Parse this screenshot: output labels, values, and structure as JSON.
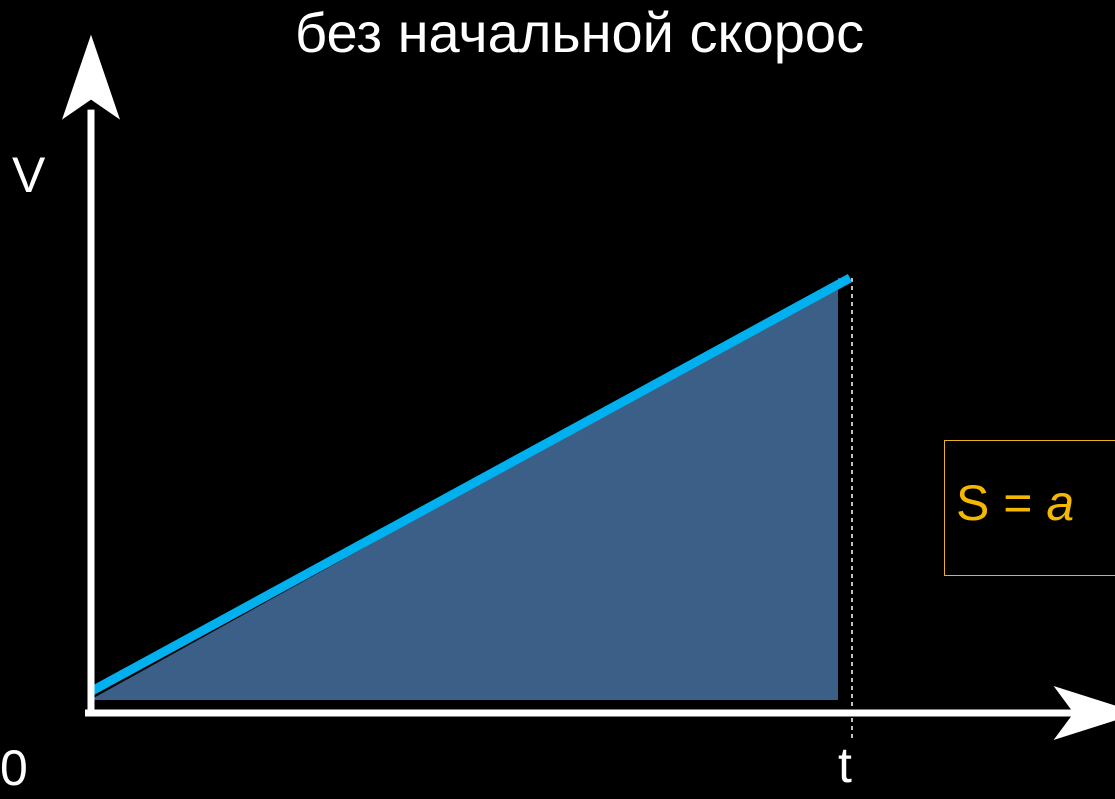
{
  "title": "без начальной скорос",
  "colors": {
    "background": "#000000",
    "axis": "#ffffff",
    "line": "#00b0ef",
    "area": "#3b5f87",
    "formula": "#f5b800",
    "formula_border": "#e8b41e"
  },
  "formula": {
    "lhs": "S =",
    "var": "a"
  },
  "chart_data": {
    "type": "area",
    "title": "без начальной скорос",
    "xlabel": "t",
    "ylabel": "V",
    "origin_label": "0",
    "x_tick_label": "t",
    "x": [
      0,
      1
    ],
    "y": [
      0,
      1
    ],
    "xlim": [
      0,
      1.36
    ],
    "ylim": [
      0,
      1.47
    ],
    "grid": false,
    "legend": "none",
    "shaded_region": {
      "x_from": 0,
      "x_to": 1,
      "under": "line"
    },
    "reference_line": {
      "x": 1,
      "style": "dashed"
    }
  }
}
